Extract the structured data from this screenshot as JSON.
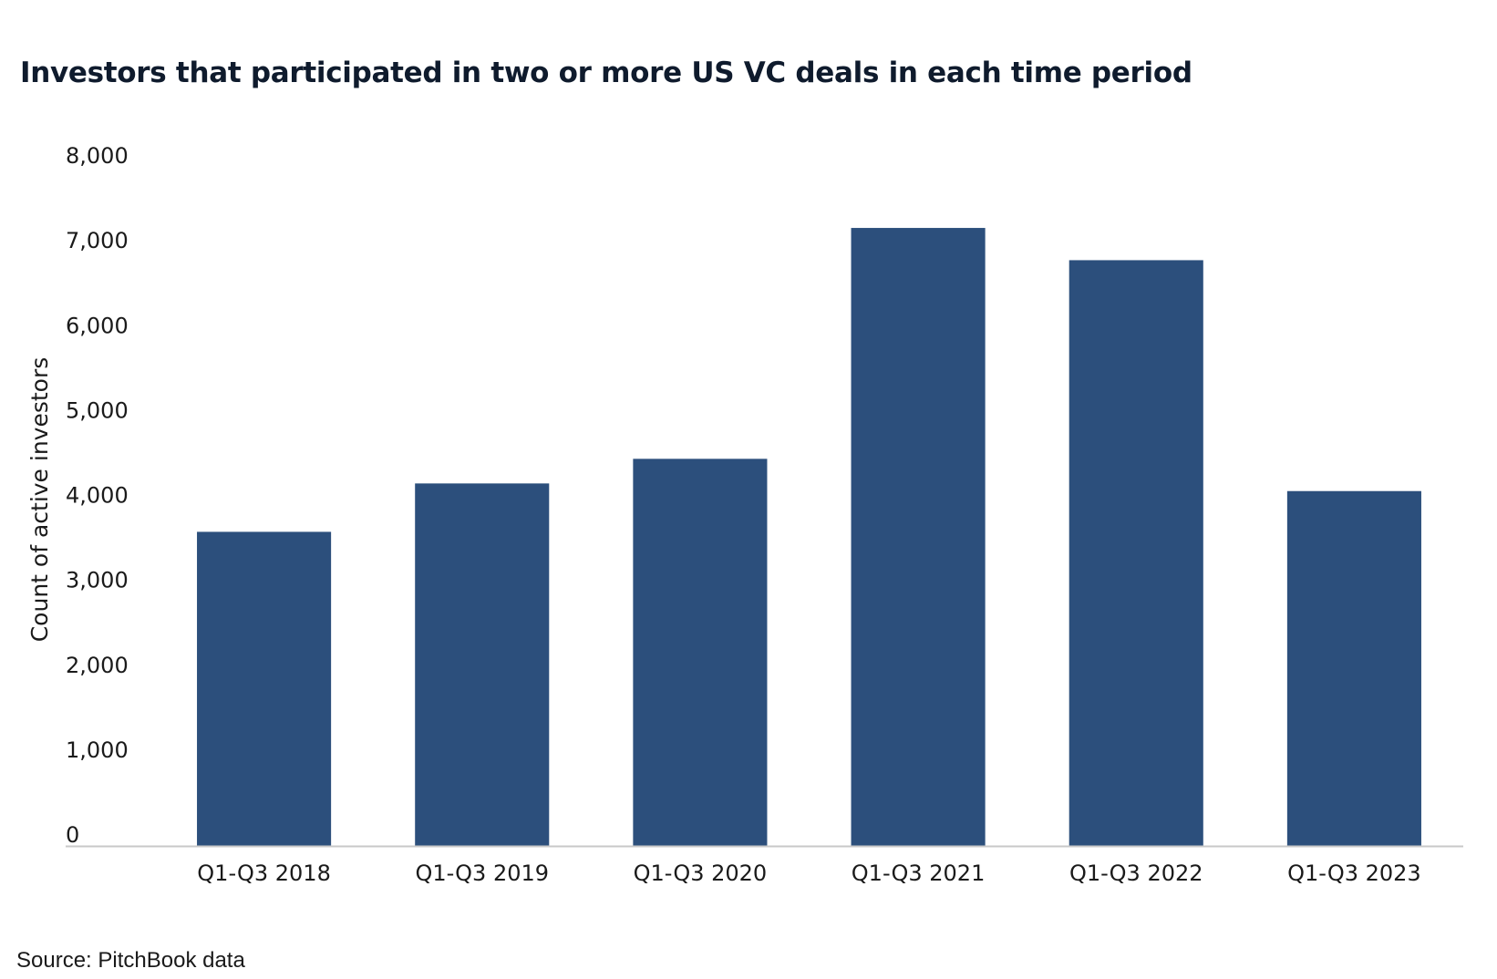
{
  "chart_data": {
    "type": "bar",
    "title": "Investors that participated in two or more US  VC deals in each time period",
    "xlabel": "",
    "ylabel": "Count of active investors",
    "categories": [
      "Q1-Q3 2018",
      "Q1-Q3 2019",
      "Q1-Q3 2020",
      "Q1-Q3 2021",
      "Q1-Q3 2022",
      "Q1-Q3 2023"
    ],
    "values": [
      3700,
      4270,
      4560,
      7280,
      6900,
      4180
    ],
    "ylim": [
      0,
      8000
    ],
    "yticks": [
      0,
      1000,
      2000,
      3000,
      4000,
      5000,
      6000,
      7000,
      8000
    ],
    "ytick_labels": [
      "0",
      "1,000",
      "2,000",
      "3,000",
      "4,000",
      "5,000",
      "6,000",
      "7,000",
      "8,000"
    ],
    "grid": false,
    "legend": "none",
    "colors": {
      "bar": "#2c4f7c",
      "axis": "#c8c8c8"
    }
  },
  "source": "Source: PitchBook data"
}
